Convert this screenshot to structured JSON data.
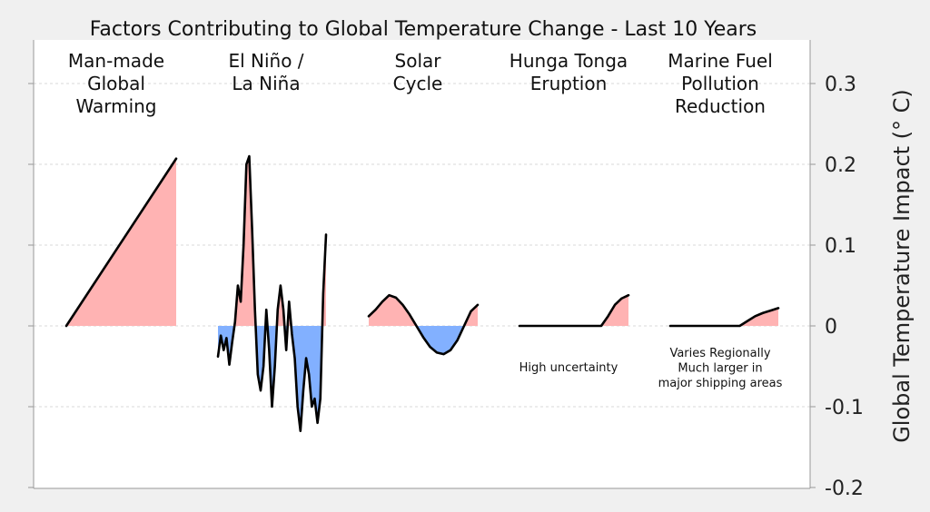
{
  "chart_data": {
    "type": "area",
    "title": "Factors Contributing to Global Temperature Change - Last 10 Years",
    "ylabel": "Global Temperature Impact (° C)",
    "ylim": [
      -0.2,
      0.3
    ],
    "yticks": [
      {
        "value": 0.3,
        "label": "0.3"
      },
      {
        "value": 0.2,
        "label": "0.2"
      },
      {
        "value": 0.1,
        "label": "0.1"
      },
      {
        "value": 0,
        "label": "0"
      },
      {
        "value": -0.1,
        "label": "-0.1"
      },
      {
        "value": -0.2,
        "label": "-0.2"
      }
    ],
    "grid": "horizontal dashed",
    "colors": {
      "positive": "#ffb3b3",
      "negative": "#82b0ff",
      "line": "#000000",
      "background": "#ffffff",
      "page": "#f0f0f0",
      "grid": "#cccccc"
    },
    "panels": [
      {
        "name": "Man-made Global Warming",
        "label_lines": [
          "Man-made",
          "Global",
          "Warming"
        ],
        "note_lines": [],
        "values": [
          0,
          0.207
        ]
      },
      {
        "name": "El Niño / La Niña",
        "label_lines": [
          "El Niño /",
          "La Niña"
        ],
        "note_lines": [],
        "values": [
          -0.038,
          -0.012,
          -0.03,
          -0.015,
          -0.048,
          -0.02,
          0.005,
          0.05,
          0.03,
          0.1,
          0.2,
          0.21,
          0.12,
          0.02,
          -0.06,
          -0.08,
          -0.05,
          0.02,
          -0.03,
          -0.1,
          -0.05,
          0.02,
          0.05,
          0.02,
          -0.03,
          0.03,
          -0.01,
          -0.04,
          -0.1,
          -0.13,
          -0.08,
          -0.04,
          -0.06,
          -0.1,
          -0.09,
          -0.12,
          -0.09,
          0.04,
          0.113
        ]
      },
      {
        "name": "Solar Cycle",
        "label_lines": [
          "Solar",
          "Cycle"
        ],
        "note_lines": [],
        "values": [
          0.012,
          0.02,
          0.03,
          0.038,
          0.035,
          0.026,
          0.014,
          0.0,
          -0.014,
          -0.026,
          -0.033,
          -0.035,
          -0.03,
          -0.018,
          0.0,
          0.018,
          0.026
        ]
      },
      {
        "name": "Hunga Tonga Eruption",
        "label_lines": [
          "Hunga Tonga",
          "Eruption"
        ],
        "note_lines": [
          "High uncertainty"
        ],
        "values": [
          0,
          0,
          0,
          0,
          0,
          0,
          0,
          0,
          0,
          0,
          0,
          0,
          0,
          0.012,
          0.026,
          0.034,
          0.038
        ]
      },
      {
        "name": "Marine Fuel Pollution Reduction",
        "label_lines": [
          "Marine Fuel",
          "Pollution",
          "Reduction"
        ],
        "note_lines": [
          "Varies Regionally",
          "Much larger in",
          "major shipping areas"
        ],
        "values": [
          0,
          0,
          0,
          0,
          0,
          0,
          0,
          0,
          0,
          0,
          0.006,
          0.012,
          0.016,
          0.019,
          0.022
        ]
      }
    ]
  }
}
